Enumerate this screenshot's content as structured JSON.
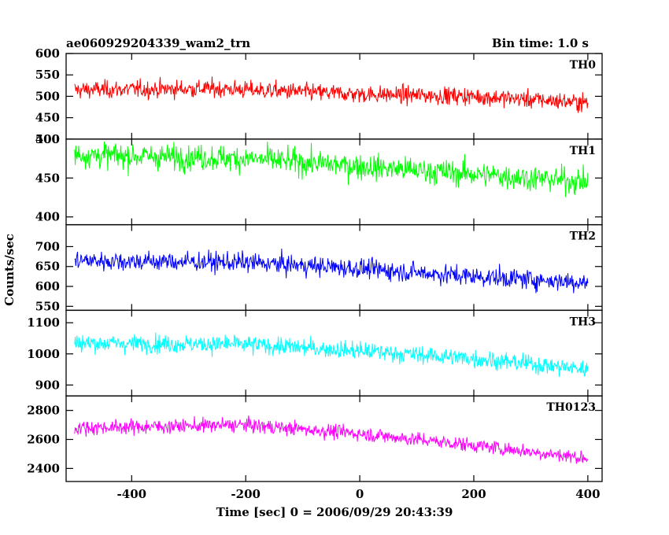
{
  "chart_data": {
    "type": "line",
    "title": "ae060929204339_wam2_trn",
    "subtitle": "Bin time: 1.0 s",
    "xlabel": "Time [sec] 0 = 2006/09/29 20:43:39",
    "ylabel": "Counts/sec",
    "xlim": [
      -515,
      425
    ],
    "xticks": [
      -400,
      -200,
      0,
      200,
      400
    ],
    "x_data_range": [
      -500,
      400
    ],
    "bin_time": 1.0,
    "grid": false,
    "panels": [
      {
        "name": "TH0",
        "color": "#ff0000",
        "ylim": [
          400,
          600
        ],
        "yticks": [
          400,
          450,
          500,
          550,
          600
        ],
        "trend": [
          [
            -500,
            515
          ],
          [
            -250,
            518
          ],
          [
            0,
            505
          ],
          [
            200,
            500
          ],
          [
            400,
            485
          ]
        ],
        "noise": 25
      },
      {
        "name": "TH1",
        "color": "#00ff00",
        "ylim": [
          390,
          500
        ],
        "yticks": [
          400,
          450,
          500
        ],
        "trend": [
          [
            -500,
            480
          ],
          [
            -200,
            475
          ],
          [
            0,
            465
          ],
          [
            200,
            455
          ],
          [
            400,
            445
          ]
        ],
        "noise": 20
      },
      {
        "name": "TH2",
        "color": "#0000ff",
        "ylim": [
          540,
          755
        ],
        "yticks": [
          550,
          600,
          650,
          700
        ],
        "trend": [
          [
            -500,
            665
          ],
          [
            -200,
            660
          ],
          [
            0,
            645
          ],
          [
            200,
            625
          ],
          [
            400,
            610
          ]
        ],
        "noise": 30
      },
      {
        "name": "TH3",
        "color": "#00ffff",
        "ylim": [
          865,
          1140
        ],
        "yticks": [
          900,
          1000,
          1100
        ],
        "trend": [
          [
            -500,
            1035
          ],
          [
            -200,
            1030
          ],
          [
            0,
            1010
          ],
          [
            200,
            985
          ],
          [
            400,
            950
          ]
        ],
        "noise": 35
      },
      {
        "name": "TH0123",
        "color": "#ff00ff",
        "ylim": [
          2310,
          2900
        ],
        "yticks": [
          2400,
          2600,
          2800
        ],
        "trend": [
          [
            -500,
            2680
          ],
          [
            -200,
            2700
          ],
          [
            0,
            2640
          ],
          [
            200,
            2560
          ],
          [
            400,
            2470
          ]
        ],
        "noise": 60
      }
    ]
  }
}
